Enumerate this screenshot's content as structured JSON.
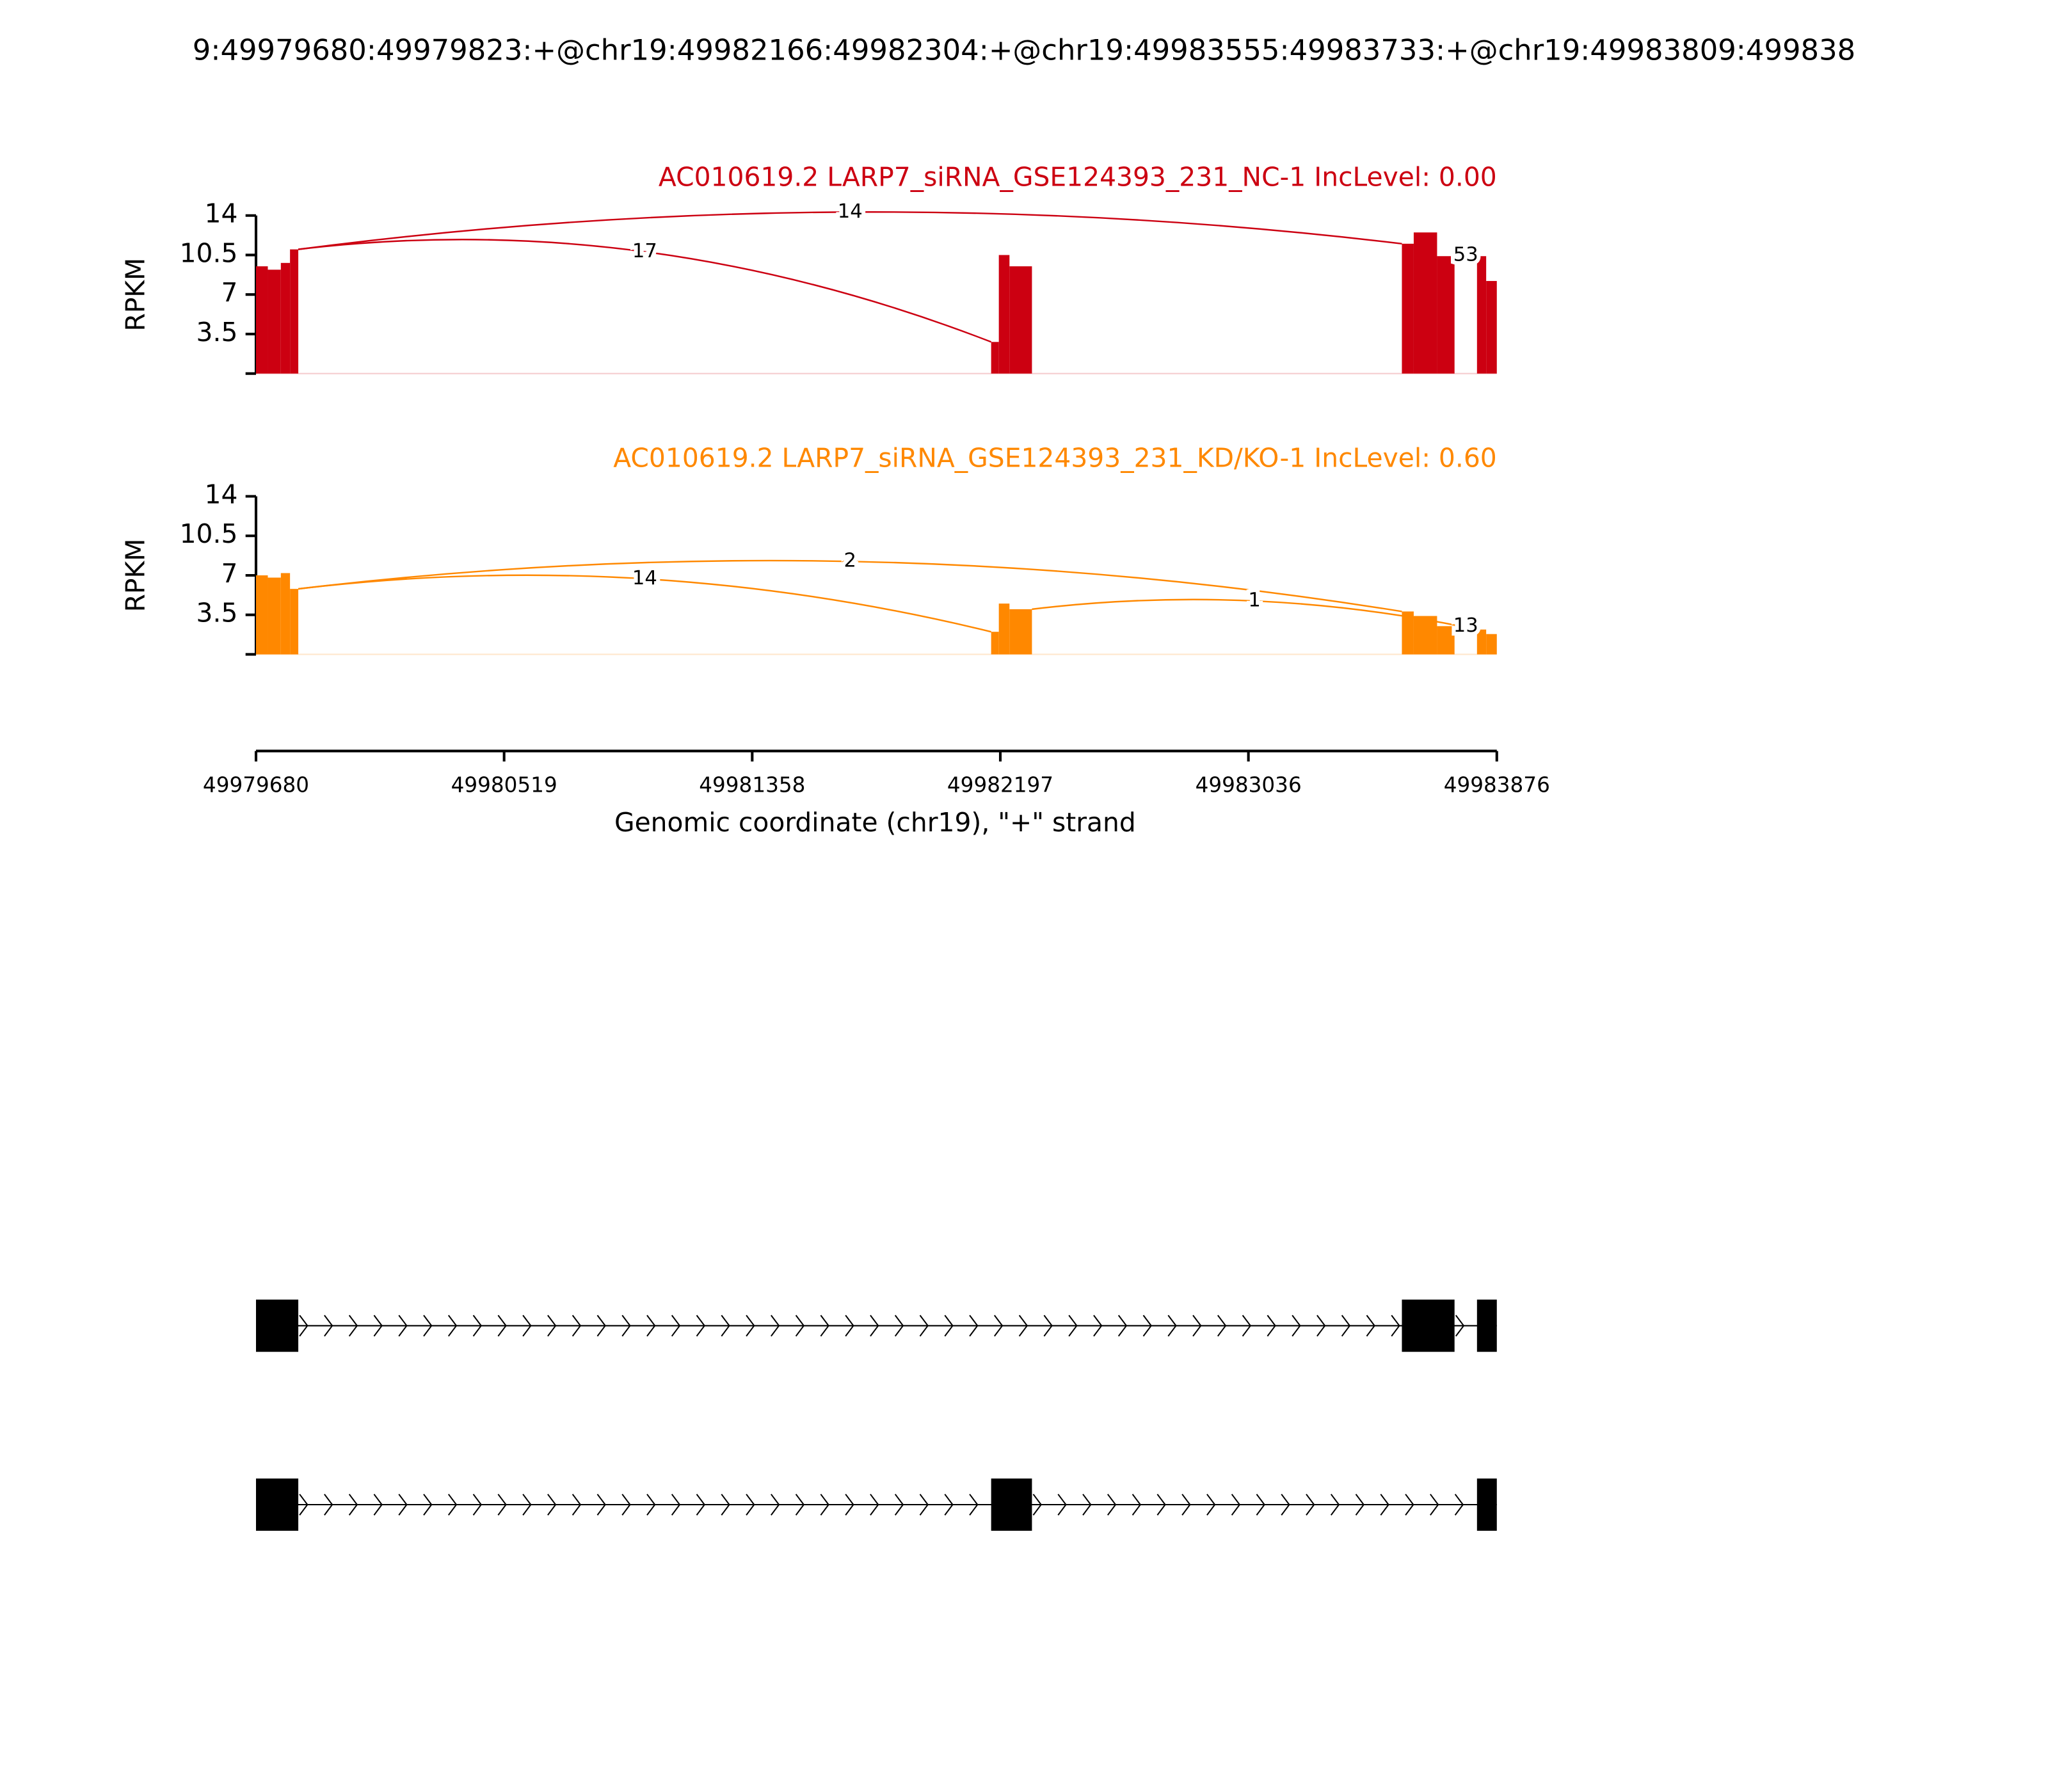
{
  "chart_data": {
    "type": "sashimi",
    "title": "9:49979680:49979823:+@chr19:49982166:49982304:+@chr19:49983555:49983733:+@chr19:49983809:499838",
    "xlim": [
      49979680,
      49983876
    ],
    "xticks": [
      49979680,
      49980519,
      49981358,
      49982197,
      49983036,
      49983876
    ],
    "xlabel": "Genomic coordinate (chr19), \"+\" strand",
    "ylabel": "RPKM",
    "ylim": [
      0,
      14
    ],
    "yticks": [
      3.5,
      7,
      10.5,
      14
    ],
    "panels": [
      {
        "name": "AC010619.2 LARP7_siRNA_GSE124393_231_NC-1 IncLevel: 0.00",
        "color": "#cc0011",
        "bins": [
          49979680,
          49979720,
          49979764,
          49979795,
          49979823,
          49982166,
          49982192,
          49982228,
          49982304,
          49983555,
          49983595,
          49983674,
          49983733,
          49983809,
          49983840,
          49983876
        ],
        "values": [
          9.5,
          9.2,
          9.8,
          11,
          null,
          2.8,
          10.5,
          9.5,
          null,
          11.5,
          12.5,
          10.4,
          null,
          10.4,
          8.2
        ],
        "junctions": [
          {
            "from": 49979823,
            "to": 49982166,
            "count": 17
          },
          {
            "from": 49979823,
            "to": 49983555,
            "count": 14
          },
          {
            "from": 49983733,
            "to": 49983809,
            "count": 53
          }
        ]
      },
      {
        "name": "AC010619.2 LARP7_siRNA_GSE124393_231_KD/KO-1 IncLevel: 0.60",
        "color": "#ff8800",
        "bins": [
          49979680,
          49979720,
          49979764,
          49979795,
          49979823,
          49982166,
          49982192,
          49982228,
          49982304,
          49983555,
          49983595,
          49983674,
          49983733,
          49983809,
          49983840,
          49983876
        ],
        "values": [
          7,
          6.8,
          7.2,
          5.8,
          null,
          2,
          4.5,
          4,
          null,
          3.8,
          3.4,
          2.5,
          null,
          2.2,
          1.8
        ],
        "junctions": [
          {
            "from": 49979823,
            "to": 49982166,
            "count": 14
          },
          {
            "from": 49979823,
            "to": 49983555,
            "count": 2
          },
          {
            "from": 49982304,
            "to": 49983809,
            "count": 1
          },
          {
            "from": 49983733,
            "to": 49983809,
            "count": 13
          }
        ]
      }
    ],
    "transcripts": [
      {
        "exons": [
          [
            49979680,
            49979823
          ],
          [
            49983555,
            49983733
          ],
          [
            49983809,
            49983876
          ]
        ]
      },
      {
        "exons": [
          [
            49979680,
            49979823
          ],
          [
            49982166,
            49982304
          ],
          [
            49983809,
            49983876
          ]
        ]
      }
    ]
  }
}
